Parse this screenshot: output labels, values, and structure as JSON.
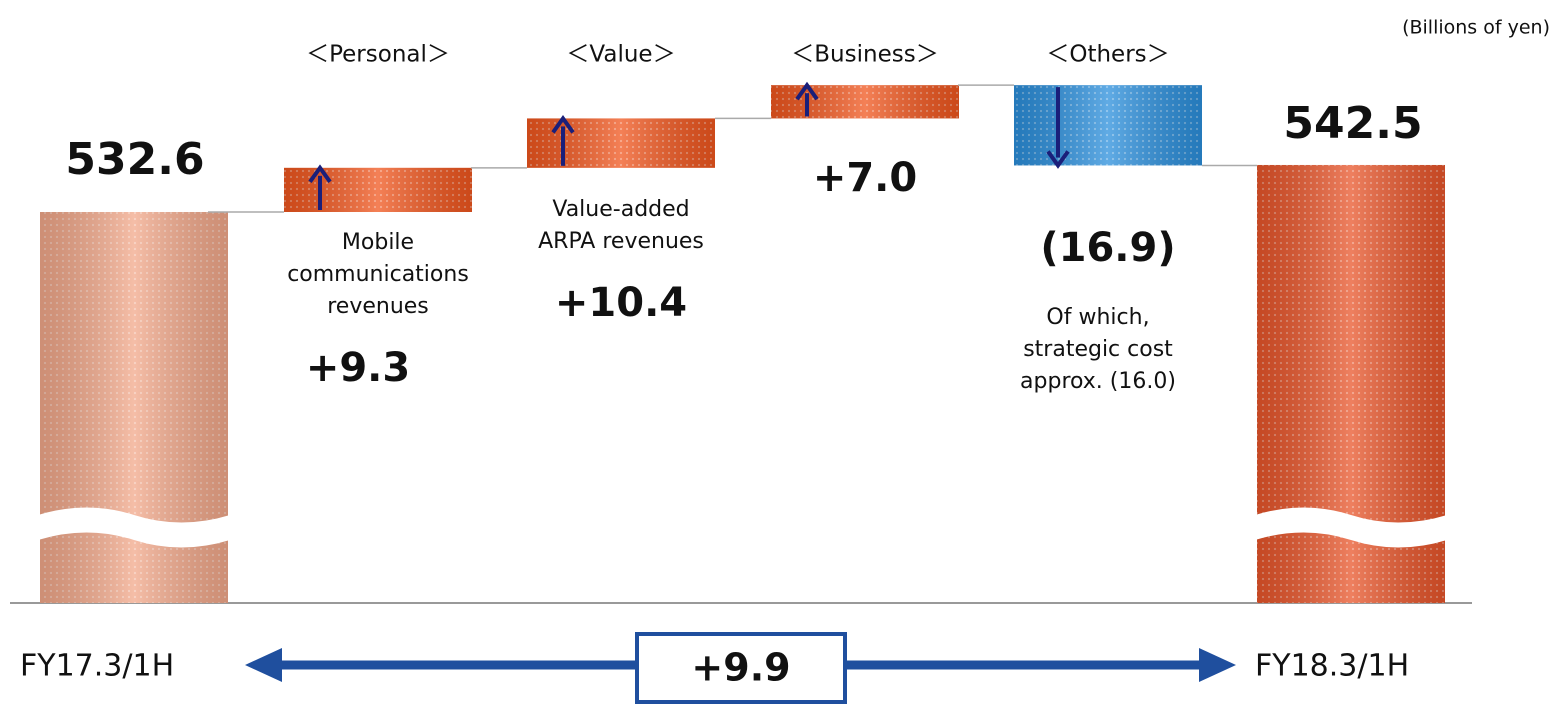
{
  "chart_data": {
    "type": "waterfall",
    "unit_note": "(Billions of yen)",
    "start": {
      "label": "FY17.3/1H",
      "value": 532.6,
      "color": "#f2a88a"
    },
    "end": {
      "label": "FY18.3/1H",
      "value": 542.5,
      "color": "#e8552a"
    },
    "categories": [
      "＜Personal＞",
      "＜Value＞",
      "＜Business＞",
      "＜Others＞"
    ],
    "descriptions": [
      [
        "Mobile",
        "communications",
        "revenues"
      ],
      [
        "Value-added",
        "ARPA revenues"
      ],
      null,
      [
        "Of which,",
        "strategic cost",
        "approx. (16.0)"
      ]
    ],
    "values": [
      9.3,
      10.4,
      7.0,
      -16.9
    ],
    "value_labels": [
      "+9.3",
      "+10.4",
      "+7.0",
      "(16.9)"
    ],
    "increase_color": "#f0561e",
    "decrease_color": "#2b8fdc",
    "total_change": {
      "value": 9.9,
      "label": "+9.9"
    }
  }
}
